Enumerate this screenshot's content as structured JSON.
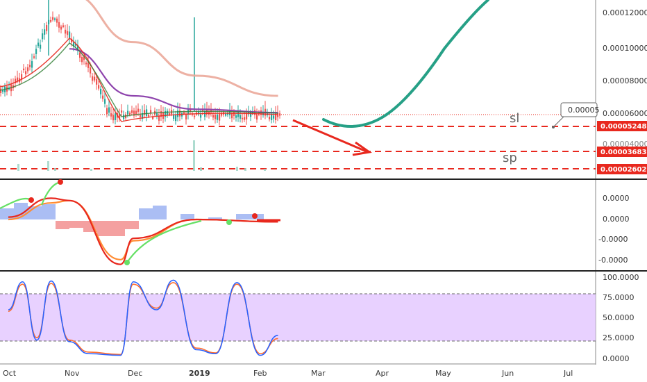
{
  "chart_data": [
    {
      "type": "line",
      "panel": "price",
      "y_tick_labels": [
        "0.00012000",
        "0.00010000",
        "0.00008000",
        "0.00006000"
      ],
      "y_ticks": [
        0.00012,
        0.0001,
        8e-05,
        6e-05
      ],
      "ylim": [
        2.4e-05,
        0.000137
      ],
      "price_tags": [
        {
          "value": 5.248e-05,
          "label": "0.00005248"
        },
        {
          "value": 3.683e-05,
          "label": "0.00003683"
        },
        {
          "value": 2.602e-05,
          "label": "0.00002602"
        }
      ],
      "hidden_tick_label": "0.00004000",
      "callout_label": "0.00005",
      "annotations": [
        "sl",
        "sp"
      ],
      "series": [
        {
          "role": "candles",
          "x": [
            "Oct",
            "Oct 12",
            "Oct 22",
            "Nov",
            "Nov 10",
            "Nov 20",
            "Dec",
            "Dec 15",
            "Jan",
            "Jan 15",
            "Feb",
            "Feb 10"
          ],
          "values": [
            7.5e-05,
            9.2e-05,
            0.000118,
            0.000108,
            8.8e-05,
            6e-05,
            6.2e-05,
            6e-05,
            6.2e-05,
            6e-05,
            6.1e-05,
            6e-05
          ]
        },
        {
          "role": "ma_long",
          "x": [
            "Nov",
            "Dec",
            "Jan",
            "Feb 10"
          ],
          "values": [
            0.000133,
            0.000104,
            8.4e-05,
            7.2e-05
          ]
        },
        {
          "role": "ma_mid",
          "x": [
            "Nov",
            "Dec",
            "Jan",
            "Feb 10"
          ],
          "values": [
            0.0001,
            7.2e-05,
            6.4e-05,
            6.2e-05
          ]
        },
        {
          "role": "projection",
          "x": [
            "Mar 1",
            "Mar 20",
            "Apr 15",
            "May 10",
            "May 25"
          ],
          "values": [
            5.7e-05,
            5.2e-05,
            6.8e-05,
            0.000112,
            0.000137
          ]
        }
      ]
    },
    {
      "type": "line",
      "panel": "macd",
      "y_tick_labels": [
        "0.0000",
        "0.0000",
        "-0.0000",
        "-0.0000"
      ],
      "series": [
        {
          "role": "macd",
          "x": [
            "Oct",
            "Oct 22",
            "Nov",
            "Nov 25",
            "Dec",
            "Jan",
            "Feb 10"
          ],
          "values": [
            0.1,
            0.9,
            0.8,
            -1.9,
            -0.8,
            0.0,
            -0.1
          ]
        },
        {
          "role": "signal",
          "x": [
            "Oct",
            "Oct 22",
            "Nov",
            "Nov 25",
            "Dec",
            "Jan",
            "Feb 10"
          ],
          "values": [
            0.0,
            0.7,
            0.8,
            -1.7,
            -0.9,
            0.0,
            -0.1
          ]
        }
      ]
    },
    {
      "type": "line",
      "panel": "stoch_rsi",
      "y_tick_labels": [
        "100.0000",
        "75.0000",
        "50.0000",
        "25.0000",
        "0.0000"
      ],
      "ylim": [
        0,
        100
      ],
      "bands": [
        80,
        20
      ],
      "series": [
        {
          "role": "k",
          "x": [
            "Oct",
            "Oct 8",
            "Oct 15",
            "Oct 22",
            "Nov",
            "Nov 10",
            "Nov 25",
            "Dec",
            "Dec 12",
            "Dec 20",
            "Jan",
            "Jan 10",
            "Jan 20",
            "Feb",
            "Feb 10"
          ],
          "values": [
            60,
            95,
            22,
            96,
            20,
            5,
            3,
            95,
            60,
            97,
            10,
            5,
            94,
            3,
            28
          ]
        },
        {
          "role": "d",
          "x": [
            "Oct",
            "Oct 8",
            "Oct 15",
            "Oct 22",
            "Nov",
            "Nov 10",
            "Nov 25",
            "Dec",
            "Dec 12",
            "Dec 20",
            "Jan",
            "Jan 10",
            "Jan 20",
            "Feb",
            "Feb 10"
          ],
          "values": [
            58,
            92,
            25,
            93,
            22,
            7,
            4,
            92,
            62,
            94,
            12,
            6,
            92,
            5,
            24
          ]
        }
      ]
    }
  ],
  "x_axis": {
    "labels": [
      "Oct",
      "Nov",
      "Dec",
      "2019",
      "Feb",
      "Mar",
      "Apr",
      "May",
      "Jun",
      "Jul"
    ],
    "bold_label": "2019"
  },
  "colors": {
    "up": "#26a69a",
    "down": "#ef5350",
    "projection": "#26a086",
    "ma_long": "#eba89a",
    "ma_mid": "#8e44ad",
    "support_line": "#e8281e",
    "stoch_band": "#e0c2ff",
    "arrow": "#e8281e"
  }
}
